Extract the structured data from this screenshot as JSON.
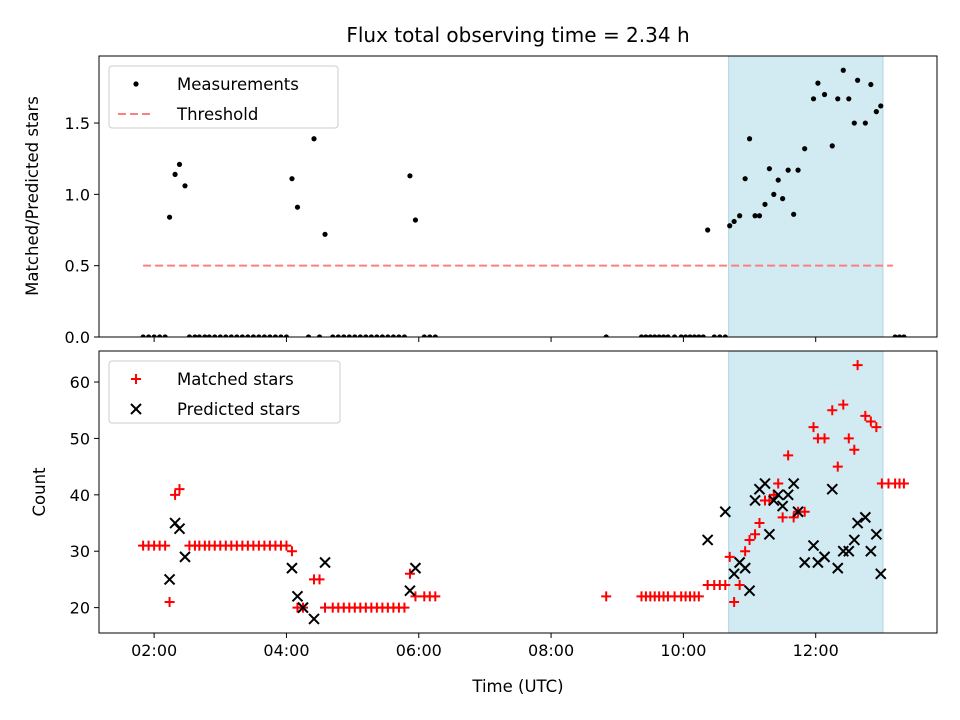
{
  "chart_data": [
    {
      "type": "scatter",
      "panel": "top",
      "title": "Flux total observing time = 2.34 h",
      "xlabel": "",
      "ylabel": "Matched/Predicted stars",
      "xlim": [
        "01:10",
        "13:50"
      ],
      "ylim": [
        0,
        1.97
      ],
      "xticks": [
        "02:00",
        "04:00",
        "06:00",
        "08:00",
        "10:00",
        "12:00"
      ],
      "xticklabels_shown": false,
      "yticks": [
        0.0,
        0.5,
        1.0,
        1.5
      ],
      "yticklabels": [
        "0.0",
        "0.5",
        "1.0",
        "1.5"
      ],
      "shaded_region": {
        "x": [
          "10:41",
          "13:01"
        ],
        "color": "#add8e6"
      },
      "legend": {
        "placement": "top-left",
        "entries": [
          "Measurements",
          "Threshold"
        ]
      },
      "series": [
        {
          "name": "Measurements",
          "color": "#000000",
          "marker": "dot",
          "points": [
            [
              "01:50",
              0
            ],
            [
              "01:55",
              0
            ],
            [
              "02:00",
              0
            ],
            [
              "02:05",
              0
            ],
            [
              "02:10",
              0
            ],
            [
              "02:14",
              0.84
            ],
            [
              "02:19",
              1.14
            ],
            [
              "02:23",
              1.21
            ],
            [
              "02:28",
              1.06
            ],
            [
              "02:32",
              0
            ],
            [
              "02:37",
              0
            ],
            [
              "02:41",
              0
            ],
            [
              "02:46",
              0
            ],
            [
              "02:50",
              0
            ],
            [
              "02:55",
              0
            ],
            [
              "03:00",
              0
            ],
            [
              "03:05",
              0
            ],
            [
              "03:10",
              0
            ],
            [
              "03:15",
              0
            ],
            [
              "03:20",
              0
            ],
            [
              "03:25",
              0
            ],
            [
              "03:30",
              0
            ],
            [
              "03:35",
              0
            ],
            [
              "03:40",
              0
            ],
            [
              "03:45",
              0
            ],
            [
              "03:50",
              0
            ],
            [
              "03:55",
              0
            ],
            [
              "04:00",
              0
            ],
            [
              "04:05",
              1.11
            ],
            [
              "04:10",
              0.91
            ],
            [
              "04:20",
              0
            ],
            [
              "04:25",
              1.39
            ],
            [
              "04:30",
              0
            ],
            [
              "04:35",
              0.72
            ],
            [
              "04:42",
              0
            ],
            [
              "04:47",
              0
            ],
            [
              "04:52",
              0
            ],
            [
              "04:57",
              0
            ],
            [
              "05:02",
              0
            ],
            [
              "05:07",
              0
            ],
            [
              "05:12",
              0
            ],
            [
              "05:17",
              0
            ],
            [
              "05:22",
              0
            ],
            [
              "05:27",
              0
            ],
            [
              "05:32",
              0
            ],
            [
              "05:37",
              0
            ],
            [
              "05:42",
              0
            ],
            [
              "05:47",
              0
            ],
            [
              "05:52",
              1.13
            ],
            [
              "05:57",
              0.82
            ],
            [
              "06:05",
              0
            ],
            [
              "06:10",
              0
            ],
            [
              "06:15",
              0
            ],
            [
              "08:50",
              0
            ],
            [
              "09:22",
              0
            ],
            [
              "09:26",
              0
            ],
            [
              "09:30",
              0
            ],
            [
              "09:34",
              0
            ],
            [
              "09:38",
              0
            ],
            [
              "09:42",
              0
            ],
            [
              "09:46",
              0
            ],
            [
              "09:52",
              0
            ],
            [
              "09:58",
              0
            ],
            [
              "10:02",
              0
            ],
            [
              "10:06",
              0
            ],
            [
              "10:10",
              0
            ],
            [
              "10:14",
              0
            ],
            [
              "10:18",
              0
            ],
            [
              "10:22",
              0.75
            ],
            [
              "10:28",
              0
            ],
            [
              "10:33",
              0
            ],
            [
              "10:38",
              0
            ],
            [
              "10:42",
              0.78
            ],
            [
              "10:46",
              0.81
            ],
            [
              "10:51",
              0.85
            ],
            [
              "10:56",
              1.11
            ],
            [
              "11:00",
              1.39
            ],
            [
              "11:05",
              0.85
            ],
            [
              "11:09",
              0.85
            ],
            [
              "11:14",
              0.93
            ],
            [
              "11:18",
              1.18
            ],
            [
              "11:22",
              1.0
            ],
            [
              "11:26",
              1.1
            ],
            [
              "11:30",
              0.97
            ],
            [
              "11:35",
              1.17
            ],
            [
              "11:40",
              0.86
            ],
            [
              "11:44",
              1.17
            ],
            [
              "11:50",
              1.32
            ],
            [
              "11:58",
              1.67
            ],
            [
              "12:02",
              1.78
            ],
            [
              "12:08",
              1.7
            ],
            [
              "12:15",
              1.34
            ],
            [
              "12:20",
              1.67
            ],
            [
              "12:25",
              1.87
            ],
            [
              "12:30",
              1.67
            ],
            [
              "12:35",
              1.5
            ],
            [
              "12:38",
              1.8
            ],
            [
              "12:45",
              1.5
            ],
            [
              "12:50",
              1.77
            ],
            [
              "12:55",
              1.58
            ],
            [
              "12:59",
              1.62
            ],
            [
              "13:12",
              0
            ],
            [
              "13:16",
              0
            ],
            [
              "13:20",
              0
            ]
          ]
        },
        {
          "name": "Threshold",
          "color": "#ff7f7f",
          "style": "dashed",
          "points": [
            [
              "01:50",
              0.5
            ],
            [
              "13:10",
              0.5
            ]
          ]
        }
      ]
    },
    {
      "type": "scatter",
      "panel": "bottom",
      "xlabel": "Time (UTC)",
      "ylabel": "Count",
      "xlim": [
        "01:10",
        "13:50"
      ],
      "ylim": [
        15.5,
        65.5
      ],
      "xticks": [
        "02:00",
        "04:00",
        "06:00",
        "08:00",
        "10:00",
        "12:00"
      ],
      "xticklabels": [
        "02:00",
        "04:00",
        "06:00",
        "08:00",
        "10:00",
        "12:00"
      ],
      "yticks": [
        20,
        30,
        40,
        50,
        60
      ],
      "yticklabels": [
        "20",
        "30",
        "40",
        "50",
        "60"
      ],
      "shaded_region": {
        "x": [
          "10:41",
          "13:01"
        ],
        "color": "#add8e6"
      },
      "legend": {
        "placement": "top-left",
        "entries": [
          "Matched stars",
          "Predicted stars"
        ]
      },
      "series": [
        {
          "name": "Matched stars",
          "color": "#ff0000",
          "marker": "plus",
          "points": [
            [
              "01:50",
              31
            ],
            [
              "01:55",
              31
            ],
            [
              "02:00",
              31
            ],
            [
              "02:05",
              31
            ],
            [
              "02:10",
              31
            ],
            [
              "02:14",
              21
            ],
            [
              "02:19",
              40
            ],
            [
              "02:23",
              41
            ],
            [
              "02:32",
              31
            ],
            [
              "02:37",
              31
            ],
            [
              "02:41",
              31
            ],
            [
              "02:46",
              31
            ],
            [
              "02:50",
              31
            ],
            [
              "02:55",
              31
            ],
            [
              "03:00",
              31
            ],
            [
              "03:05",
              31
            ],
            [
              "03:10",
              31
            ],
            [
              "03:15",
              31
            ],
            [
              "03:20",
              31
            ],
            [
              "03:25",
              31
            ],
            [
              "03:30",
              31
            ],
            [
              "03:35",
              31
            ],
            [
              "03:40",
              31
            ],
            [
              "03:45",
              31
            ],
            [
              "03:50",
              31
            ],
            [
              "03:55",
              31
            ],
            [
              "04:00",
              31
            ],
            [
              "04:05",
              30
            ],
            [
              "04:10",
              20
            ],
            [
              "04:15",
              20
            ],
            [
              "04:25",
              25
            ],
            [
              "04:30",
              25
            ],
            [
              "04:35",
              20
            ],
            [
              "04:42",
              20
            ],
            [
              "04:47",
              20
            ],
            [
              "04:52",
              20
            ],
            [
              "04:57",
              20
            ],
            [
              "05:02",
              20
            ],
            [
              "05:07",
              20
            ],
            [
              "05:12",
              20
            ],
            [
              "05:17",
              20
            ],
            [
              "05:22",
              20
            ],
            [
              "05:27",
              20
            ],
            [
              "05:32",
              20
            ],
            [
              "05:37",
              20
            ],
            [
              "05:42",
              20
            ],
            [
              "05:47",
              20
            ],
            [
              "05:52",
              26
            ],
            [
              "05:57",
              22
            ],
            [
              "06:05",
              22
            ],
            [
              "06:10",
              22
            ],
            [
              "06:15",
              22
            ],
            [
              "08:50",
              22
            ],
            [
              "09:22",
              22
            ],
            [
              "09:26",
              22
            ],
            [
              "09:30",
              22
            ],
            [
              "09:34",
              22
            ],
            [
              "09:38",
              22
            ],
            [
              "09:42",
              22
            ],
            [
              "09:46",
              22
            ],
            [
              "09:52",
              22
            ],
            [
              "09:58",
              22
            ],
            [
              "10:02",
              22
            ],
            [
              "10:06",
              22
            ],
            [
              "10:10",
              22
            ],
            [
              "10:14",
              22
            ],
            [
              "10:22",
              24
            ],
            [
              "10:28",
              24
            ],
            [
              "10:33",
              24
            ],
            [
              "10:38",
              24
            ],
            [
              "10:42",
              29
            ],
            [
              "10:46",
              21
            ],
            [
              "10:51",
              24
            ],
            [
              "10:56",
              30
            ],
            [
              "11:00",
              32
            ],
            [
              "11:05",
              33
            ],
            [
              "11:09",
              35
            ],
            [
              "11:14",
              39
            ],
            [
              "11:18",
              39
            ],
            [
              "11:22",
              40
            ],
            [
              "11:26",
              42
            ],
            [
              "11:30",
              36
            ],
            [
              "11:35",
              47
            ],
            [
              "11:40",
              36
            ],
            [
              "11:44",
              37
            ],
            [
              "11:50",
              37
            ],
            [
              "11:58",
              52
            ],
            [
              "12:02",
              50
            ],
            [
              "12:08",
              50
            ],
            [
              "12:15",
              55
            ],
            [
              "12:20",
              45
            ],
            [
              "12:25",
              56
            ],
            [
              "12:30",
              50
            ],
            [
              "12:35",
              48
            ],
            [
              "12:38",
              63
            ],
            [
              "12:45",
              54
            ],
            [
              "12:50",
              53
            ],
            [
              "12:55",
              52
            ],
            [
              "13:00",
              42
            ],
            [
              "13:06",
              42
            ],
            [
              "13:12",
              42
            ],
            [
              "13:16",
              42
            ],
            [
              "13:20",
              42
            ]
          ]
        },
        {
          "name": "Predicted stars",
          "color": "#000000",
          "marker": "x",
          "points": [
            [
              "02:14",
              25
            ],
            [
              "02:19",
              35
            ],
            [
              "02:23",
              34
            ],
            [
              "02:28",
              29
            ],
            [
              "04:05",
              27
            ],
            [
              "04:10",
              22
            ],
            [
              "04:15",
              20
            ],
            [
              "04:25",
              18
            ],
            [
              "04:35",
              28
            ],
            [
              "05:52",
              23
            ],
            [
              "05:57",
              27
            ],
            [
              "10:22",
              32
            ],
            [
              "10:38",
              37
            ],
            [
              "10:46",
              26
            ],
            [
              "10:51",
              28
            ],
            [
              "10:56",
              27
            ],
            [
              "11:00",
              23
            ],
            [
              "11:05",
              39
            ],
            [
              "11:09",
              41
            ],
            [
              "11:14",
              42
            ],
            [
              "11:18",
              33
            ],
            [
              "11:22",
              39
            ],
            [
              "11:26",
              40
            ],
            [
              "11:30",
              38
            ],
            [
              "11:35",
              40
            ],
            [
              "11:40",
              42
            ],
            [
              "11:44",
              37
            ],
            [
              "11:50",
              28
            ],
            [
              "11:58",
              31
            ],
            [
              "12:02",
              28
            ],
            [
              "12:08",
              29
            ],
            [
              "12:15",
              41
            ],
            [
              "12:20",
              27
            ],
            [
              "12:25",
              30
            ],
            [
              "12:30",
              30
            ],
            [
              "12:35",
              32
            ],
            [
              "12:38",
              35
            ],
            [
              "12:45",
              36
            ],
            [
              "12:50",
              30
            ],
            [
              "12:55",
              33
            ],
            [
              "12:59",
              26
            ]
          ]
        }
      ]
    }
  ]
}
